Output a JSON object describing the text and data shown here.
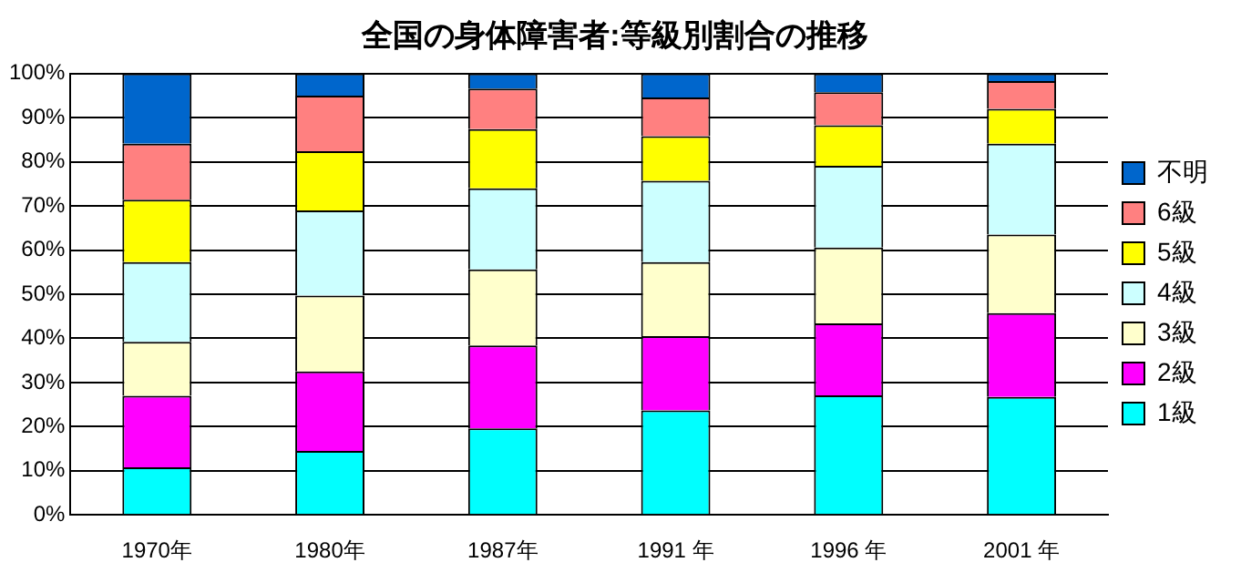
{
  "chart_data": {
    "type": "bar",
    "title": "全国の身体障害者:等級別割合の推移",
    "categories": [
      "1970年",
      "1980年",
      "1987年",
      "1991 年",
      "1996 年",
      "2001 年"
    ],
    "stacked": true,
    "legend": "right",
    "grid": "y",
    "ylim": [
      0,
      100
    ],
    "yticks": [
      {
        "value": 0,
        "label": "0%"
      },
      {
        "value": 10,
        "label": "10%"
      },
      {
        "value": 20,
        "label": "20%"
      },
      {
        "value": 30,
        "label": "30%"
      },
      {
        "value": 40,
        "label": "40%"
      },
      {
        "value": 50,
        "label": "50%"
      },
      {
        "value": 60,
        "label": "60%"
      },
      {
        "value": 70,
        "label": "70%"
      },
      {
        "value": 80,
        "label": "80%"
      },
      {
        "value": 90,
        "label": "90%"
      },
      {
        "value": 100,
        "label": "100%"
      }
    ],
    "series": [
      {
        "name": "1級",
        "color": "#00ffff",
        "values": [
          10.8,
          14.5,
          19.6,
          23.7,
          27.1,
          26.7
        ]
      },
      {
        "name": "2級",
        "color": "#ff00ff",
        "values": [
          16.2,
          18.0,
          18.8,
          16.8,
          16.3,
          19.0
        ]
      },
      {
        "name": "3級",
        "color": "#ffffcc",
        "values": [
          12.2,
          17.2,
          17.2,
          16.8,
          17.2,
          17.8
        ]
      },
      {
        "name": "4級",
        "color": "#ccffff",
        "values": [
          18.1,
          19.3,
          18.4,
          18.4,
          18.5,
          20.6
        ]
      },
      {
        "name": "5級",
        "color": "#ffff00",
        "values": [
          14.1,
          13.4,
          13.4,
          10.1,
          9.2,
          7.9
        ]
      },
      {
        "name": "6級",
        "color": "#ff8080",
        "values": [
          12.7,
          12.6,
          9.2,
          8.8,
          7.5,
          6.3
        ]
      },
      {
        "name": "不明",
        "color": "#0066cc",
        "values": [
          15.9,
          5.0,
          3.4,
          5.4,
          4.2,
          1.7
        ]
      }
    ]
  }
}
